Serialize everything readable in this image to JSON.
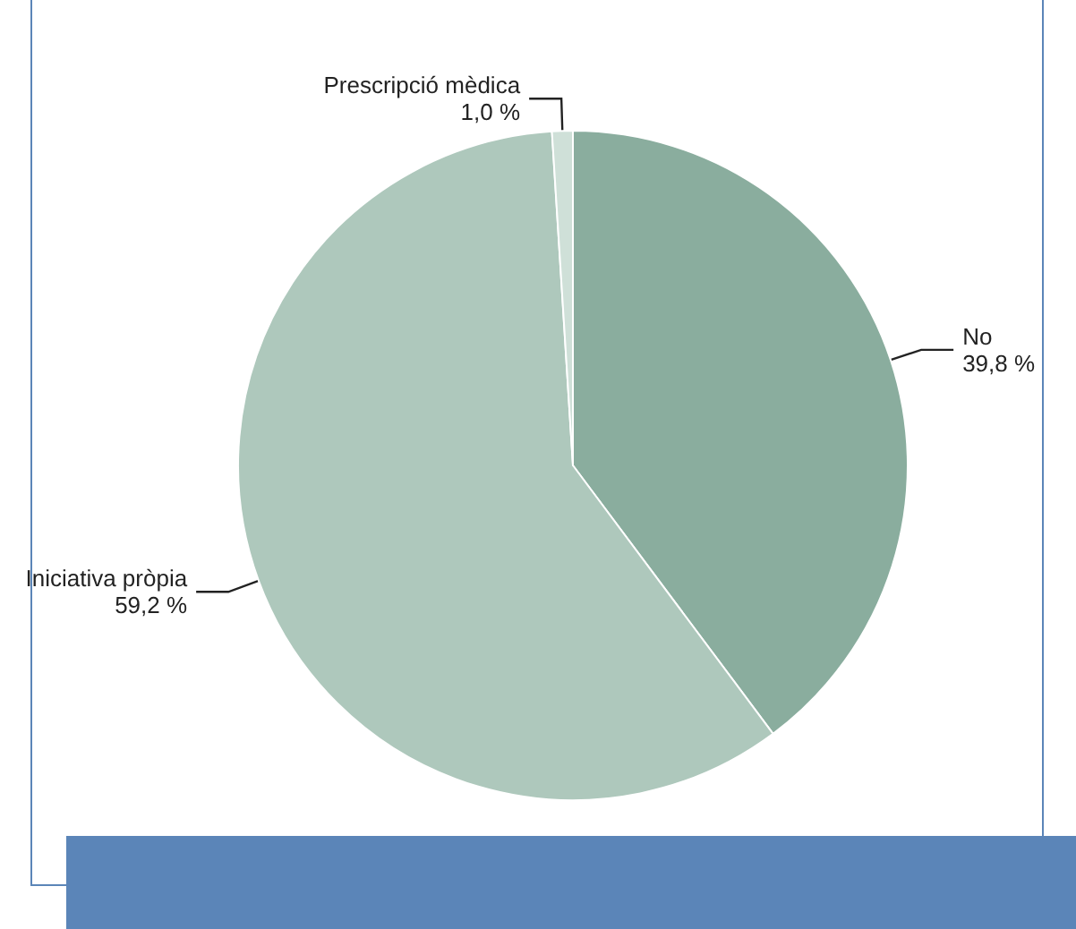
{
  "chart_data": {
    "type": "pie",
    "categories": [
      "No",
      "Iniciativa pròpia",
      "Prescripció mèdica"
    ],
    "values": [
      39.8,
      59.2,
      1.0
    ],
    "colors": [
      "#8aad9e",
      "#aec8bc",
      "#cfe0d8"
    ],
    "value_labels": [
      "39,8 %",
      "59,2 %",
      "1,0 %"
    ]
  }
}
